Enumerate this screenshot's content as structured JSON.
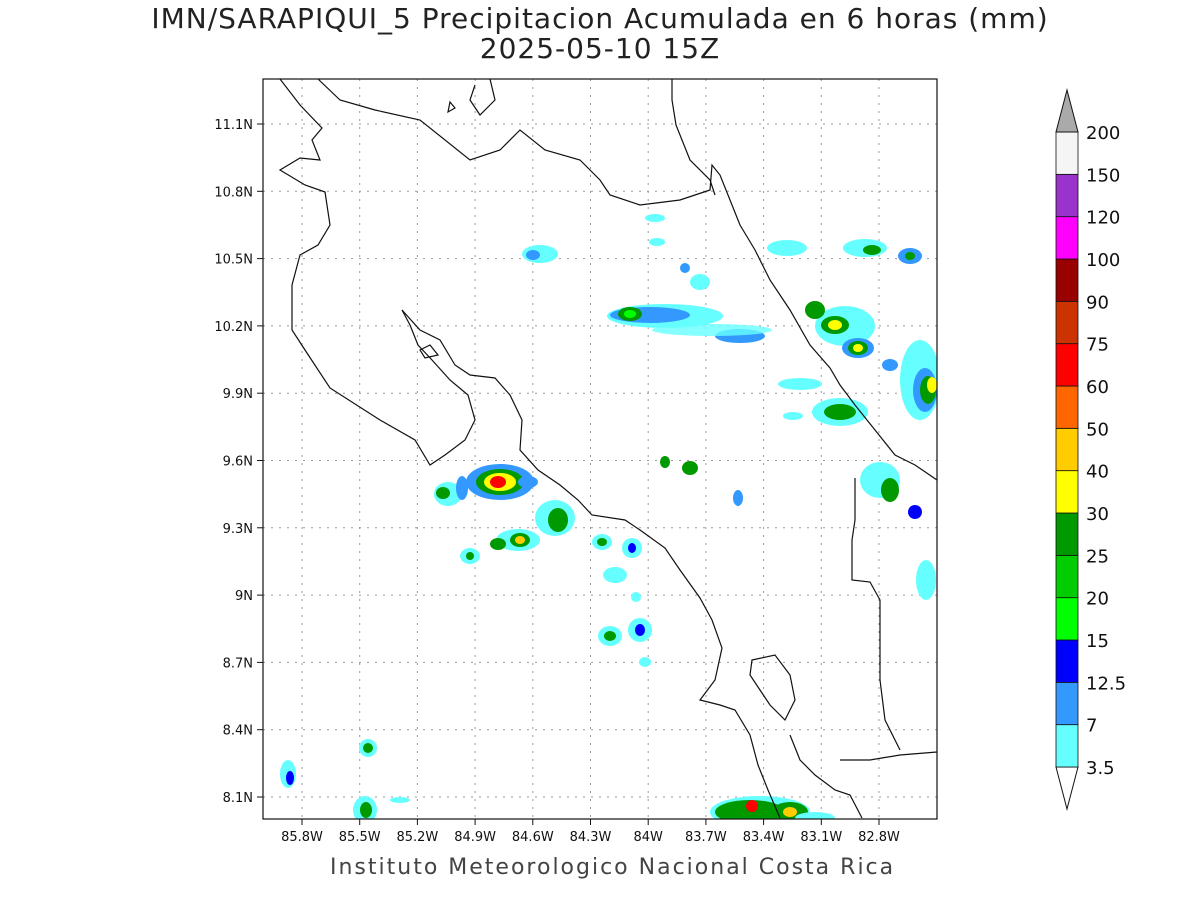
{
  "title": "IMN/SARAPIQUI_5 Precipitacion Acumulada en 6 horas (mm)",
  "subtitle": "2025-05-10 15Z",
  "footer": "Instituto Meteorologico Nacional Costa Rica",
  "lat_labels": [
    "11.1N",
    "10.8N",
    "10.5N",
    "10.2N",
    "9.9N",
    "9.6N",
    "9.3N",
    "9N",
    "8.7N",
    "8.4N",
    "8.1N"
  ],
  "lon_labels": [
    "85.8W",
    "85.5W",
    "85.2W",
    "84.9W",
    "84.6W",
    "84.3W",
    "84W",
    "83.7W",
    "83.4W",
    "83.1W",
    "82.8W"
  ],
  "colorbar": {
    "levels": [
      "3.5",
      "7",
      "12.5",
      "15",
      "20",
      "25",
      "30",
      "40",
      "50",
      "60",
      "75",
      "90",
      "100",
      "120",
      "150",
      "200"
    ],
    "colors": [
      "#66ffff",
      "#3399ff",
      "#0000ff",
      "#00ff00",
      "#00cc00",
      "#009900",
      "#ffff00",
      "#ffcc00",
      "#ff6600",
      "#ff0000",
      "#cc3300",
      "#990000",
      "#ff00ff",
      "#9933cc",
      "#f5f5f5",
      "#aaaaaa"
    ]
  }
}
